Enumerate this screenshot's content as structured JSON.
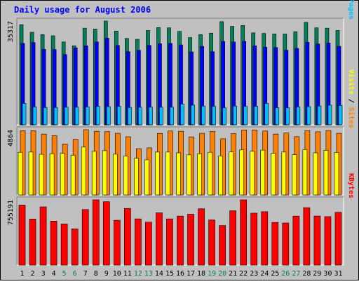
{
  "chart_data": {
    "type": "bar",
    "title": "Daily usage for August 2006",
    "colors": {
      "background": "#C0C0C0",
      "hits": "#00805C",
      "files": "#0000FF",
      "pages": "#00C0FF",
      "visits": "#FFFF00",
      "sites": "#FF8000",
      "kbytes": "#FF0000",
      "title": "#0000FF",
      "weekend_label": "#00805C"
    },
    "categories": [
      "1",
      "2",
      "3",
      "4",
      "5",
      "6",
      "7",
      "8",
      "9",
      "10",
      "11",
      "12",
      "13",
      "14",
      "15",
      "16",
      "17",
      "18",
      "19",
      "20",
      "21",
      "22",
      "23",
      "24",
      "25",
      "26",
      "27",
      "28",
      "29",
      "30",
      "31"
    ],
    "weekend_days": [
      "5",
      "6",
      "12",
      "13",
      "19",
      "20",
      "26",
      "27"
    ],
    "panels": [
      {
        "ylabel_parts": [
          "Pages",
          "Files",
          "Hits"
        ],
        "ymax_label": "35317",
        "ylim": [
          0,
          35317
        ],
        "series": [
          {
            "name": "Hits",
            "values": [
              34100,
              31500,
              30700,
              30300,
              28200,
              26900,
              32900,
              32600,
              35317,
              31900,
              29400,
              29100,
              32100,
              33100,
              33000,
              31800,
              29700,
              30700,
              31200,
              35100,
              33500,
              33800,
              31300,
              31100,
              30900,
              30900,
              31700,
              34900,
              33000,
              32900,
              32100
            ]
          },
          {
            "name": "Files",
            "values": [
              27700,
              28000,
              25700,
              25600,
              23900,
              26200,
              26900,
              28200,
              29500,
              27000,
              24900,
              25400,
              27000,
              27600,
              27700,
              27200,
              24800,
              26700,
              24900,
              28400,
              28200,
              28400,
              26900,
              26400,
              26300,
              25400,
              26000,
              28100,
              27500,
              27800,
              26700
            ]
          },
          {
            "name": "Pages",
            "values": [
              7300,
              6100,
              5900,
              5900,
              6000,
              6000,
              6100,
              6300,
              6200,
              6300,
              5900,
              6000,
              6000,
              6000,
              6000,
              7100,
              6700,
              6400,
              6300,
              5800,
              6400,
              6300,
              6300,
              7300,
              5800,
              5800,
              6100,
              6200,
              6400,
              6700,
              6600
            ]
          }
        ]
      },
      {
        "ylabel_parts": [
          "Sites",
          "Visits"
        ],
        "ymax_label": "4864",
        "ylim": [
          0,
          4864
        ],
        "series": [
          {
            "name": "Sites",
            "values": [
              4790,
              4790,
              4540,
              4420,
              3800,
              4150,
              4864,
              4750,
              4720,
              4600,
              4340,
              3450,
              3510,
              4590,
              4770,
              4750,
              4330,
              4600,
              4740,
              4190,
              4570,
              4850,
              4850,
              4770,
              4540,
              4620,
              4350,
              4790,
              4710,
              4810,
              4600
            ]
          },
          {
            "name": "Visits",
            "values": [
              3180,
              3200,
              3030,
              3080,
              3100,
              2960,
              3580,
              3250,
              3300,
              3040,
              2900,
              2730,
              2620,
              3200,
              3200,
              3140,
              2990,
              3080,
              3180,
              2910,
              3210,
              3360,
              3260,
              3340,
              3110,
              3200,
              3000,
              3380,
              3140,
              3330,
              3170
            ]
          }
        ]
      },
      {
        "ylabel_parts": [
          "KBytes"
        ],
        "ymax_label": "755191",
        "ylim": [
          0,
          755191
        ],
        "series": [
          {
            "name": "KBytes",
            "values": [
              695000,
              533000,
              674000,
              509000,
              476000,
              419000,
              643000,
              755191,
              734000,
              519000,
              656000,
              535000,
              497000,
              605000,
              535000,
              567000,
              589000,
              652000,
              522000,
              458000,
              629000,
              755191,
              601000,
              618000,
              494000,
              487000,
              567000,
              665000,
              568000,
              561000,
              611000
            ]
          }
        ]
      }
    ]
  }
}
